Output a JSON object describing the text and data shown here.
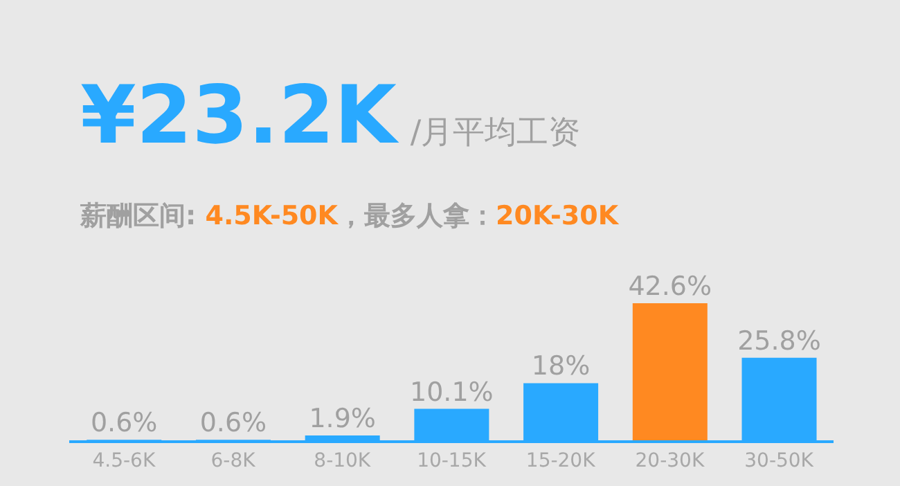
{
  "chart_data": {
    "type": "bar",
    "title": "¥23.2K",
    "subtitle": "/月平均工资",
    "annotations": [
      "薪酬区间: ",
      "4.5K-50K",
      "，最多人拿：",
      "20K-30K"
    ],
    "categories": [
      "4.5-6K",
      "6-8K",
      "8-10K",
      "10-15K",
      "15-20K",
      "20-30K",
      "30-50K"
    ],
    "values": [
      0.6,
      0.6,
      1.9,
      10.1,
      18,
      42.6,
      25.8
    ],
    "colors": [
      "#29a9ff",
      "#29a9ff",
      "#29a9ff",
      "#29a9ff",
      "#29a9ff",
      "#ff8921",
      "#29a9ff"
    ],
    "value_labels": [
      "0.6%",
      "0.6%",
      "1.9%",
      "10.1%",
      "18%",
      "42.6%",
      "25.8%"
    ],
    "grid": false,
    "legend": false
  }
}
